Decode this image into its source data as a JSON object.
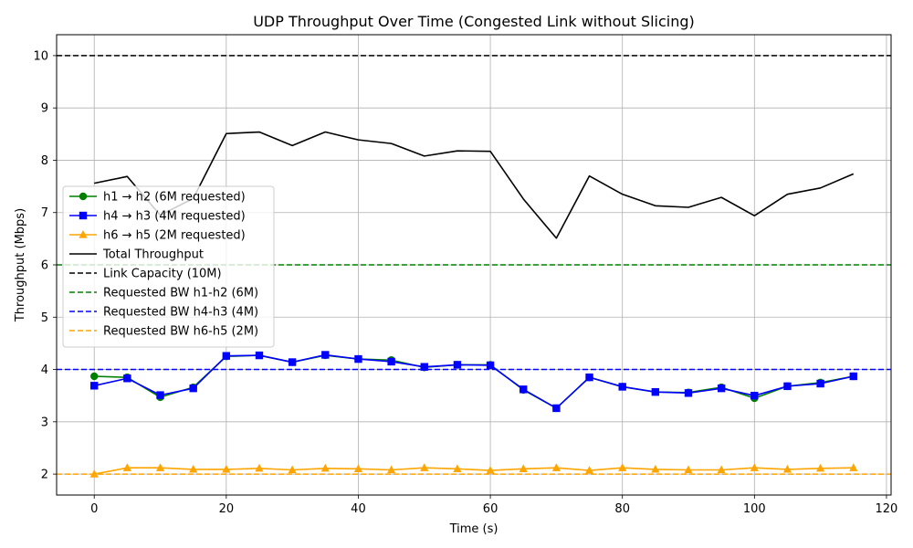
{
  "chart_data": {
    "type": "line",
    "title": "UDP Throughput Over Time (Congested Link without Slicing)",
    "xlabel": "Time (s)",
    "ylabel": "Throughput (Mbps)",
    "xlim": [
      -5.7,
      120.7
    ],
    "ylim": [
      1.6,
      10.4
    ],
    "xticks": [
      0,
      20,
      40,
      60,
      80,
      100,
      120
    ],
    "yticks": [
      2,
      3,
      4,
      5,
      6,
      7,
      8,
      9,
      10
    ],
    "grid": true,
    "legend_position": "center-left",
    "x": [
      0,
      5,
      10,
      15,
      20,
      25,
      30,
      35,
      40,
      45,
      50,
      55,
      60,
      65,
      70,
      75,
      80,
      85,
      90,
      95,
      100,
      105,
      110,
      115
    ],
    "series": [
      {
        "name": "h1 → h2 (6M requested)",
        "color": "#008000",
        "marker": "circle",
        "values": [
          3.87,
          3.85,
          3.47,
          3.66,
          4.25,
          4.27,
          4.14,
          4.27,
          4.2,
          4.18,
          4.04,
          4.09,
          4.09,
          3.61,
          3.26,
          3.85,
          3.67,
          3.57,
          3.56,
          3.66,
          3.45,
          3.68,
          3.75,
          3.87
        ]
      },
      {
        "name": "h4 → h3 (4M requested)",
        "color": "#0000ff",
        "marker": "square",
        "values": [
          3.69,
          3.83,
          3.51,
          3.64,
          4.26,
          4.27,
          4.14,
          4.28,
          4.2,
          4.15,
          4.05,
          4.09,
          4.08,
          3.62,
          3.26,
          3.85,
          3.67,
          3.57,
          3.55,
          3.64,
          3.5,
          3.68,
          3.73,
          3.87
        ]
      },
      {
        "name": "h6 → h5 (2M requested)",
        "color": "#ffa500",
        "marker": "triangle",
        "values": [
          2.0,
          2.12,
          2.12,
          2.09,
          2.09,
          2.11,
          2.08,
          2.11,
          2.1,
          2.08,
          2.12,
          2.1,
          2.07,
          2.1,
          2.12,
          2.07,
          2.12,
          2.09,
          2.08,
          2.08,
          2.12,
          2.09,
          2.11,
          2.12
        ]
      },
      {
        "name": "Total Throughput",
        "color": "#000000",
        "marker": "none",
        "values": [
          7.56,
          7.69,
          6.95,
          7.27,
          8.51,
          8.54,
          8.28,
          8.54,
          8.39,
          8.32,
          8.08,
          8.18,
          8.17,
          7.26,
          6.51,
          7.7,
          7.35,
          7.13,
          7.1,
          7.29,
          6.94,
          7.35,
          7.47,
          7.74
        ]
      }
    ],
    "reference_lines": [
      {
        "name": "Link Capacity (10M)",
        "value": 10,
        "color": "#000000"
      },
      {
        "name": "Requested BW h1-h2 (6M)",
        "value": 6,
        "color": "#008000"
      },
      {
        "name": "Requested BW h4-h3 (4M)",
        "value": 4,
        "color": "#0000ff"
      },
      {
        "name": "Requested BW h6-h5 (2M)",
        "value": 2,
        "color": "#ffa500"
      }
    ]
  }
}
